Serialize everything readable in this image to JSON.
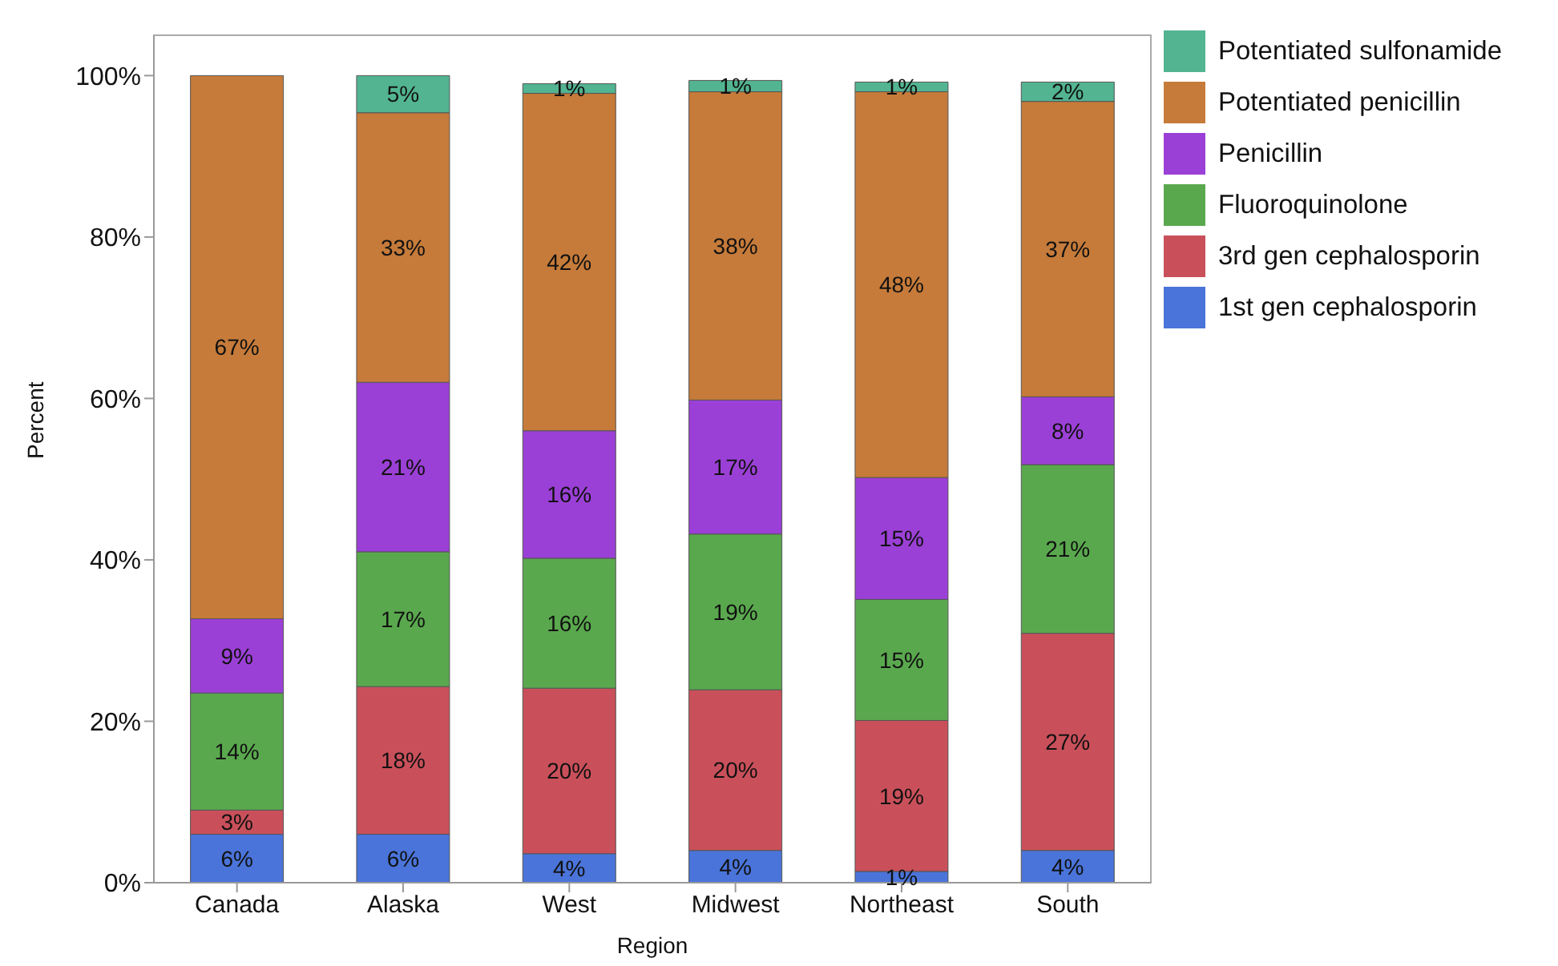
{
  "chart_data": {
    "type": "bar",
    "stacked": true,
    "xlabel": "Region",
    "ylabel": "Percent",
    "categories": [
      "Canada",
      "Alaska",
      "West",
      "Midwest",
      "Northeast",
      "South"
    ],
    "series": [
      {
        "name": "1st gen cephalosporin",
        "color": "#4a74d9",
        "values": [
          6,
          6,
          3.6,
          4,
          1.4,
          4
        ],
        "value_labels": [
          "6%",
          "6%",
          "4%",
          "4%",
          "1%",
          "4%"
        ]
      },
      {
        "name": "3rd gen cephalosporin",
        "color": "#c9505a",
        "values": [
          3,
          18.3,
          20.5,
          19.9,
          18.7,
          26.9
        ],
        "value_labels": [
          "3%",
          "18%",
          "20%",
          "20%",
          "19%",
          "27%"
        ]
      },
      {
        "name": "Fluoroquinolone",
        "color": "#5aa84e",
        "values": [
          14.5,
          16.7,
          16.1,
          19.3,
          15,
          20.9
        ],
        "value_labels": [
          "14%",
          "17%",
          "16%",
          "19%",
          "15%",
          "21%"
        ]
      },
      {
        "name": "Penicillin",
        "color": "#9b40d6",
        "values": [
          9.2,
          21,
          15.8,
          16.6,
          15.1,
          8.4
        ],
        "value_labels": [
          "9%",
          "21%",
          "16%",
          "17%",
          "15%",
          "8%"
        ]
      },
      {
        "name": "Potentiated penicillin",
        "color": "#c67b3a",
        "values": [
          67.3,
          33.4,
          41.8,
          38.2,
          47.8,
          36.6
        ],
        "value_labels": [
          "67%",
          "33%",
          "42%",
          "38%",
          "48%",
          "37%"
        ]
      },
      {
        "name": "Potentiated sulfonamide",
        "color": "#52b491",
        "values": [
          null,
          4.6,
          1.2,
          1.4,
          1.2,
          2.4
        ],
        "value_labels": [
          null,
          "5%",
          "1%",
          "1%",
          "1%",
          "2%"
        ]
      }
    ],
    "ylim": [
      0,
      105
    ],
    "yticks": [
      {
        "value": 0,
        "label": "0%"
      },
      {
        "value": 20,
        "label": "20%"
      },
      {
        "value": 40,
        "label": "40%"
      },
      {
        "value": 60,
        "label": "60%"
      },
      {
        "value": 80,
        "label": "80%"
      },
      {
        "value": 100,
        "label": "100%"
      }
    ],
    "legend": "top right",
    "grid": false
  }
}
